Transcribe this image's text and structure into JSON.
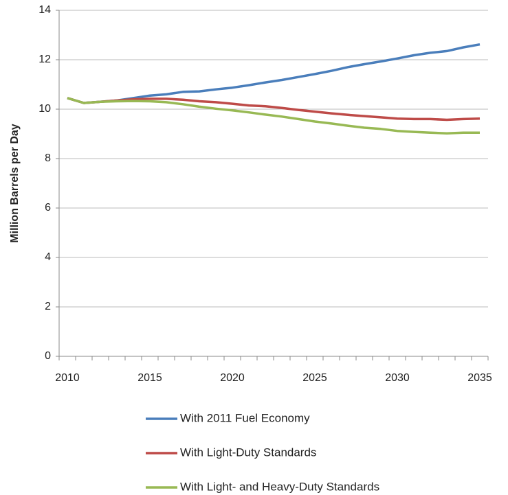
{
  "chart_data": {
    "type": "line",
    "y_label": "Million Barrels per Day",
    "x": [
      2010,
      2011,
      2012,
      2013,
      2014,
      2015,
      2016,
      2017,
      2018,
      2019,
      2020,
      2021,
      2022,
      2023,
      2024,
      2025,
      2026,
      2027,
      2028,
      2029,
      2030,
      2031,
      2032,
      2033,
      2034,
      2035
    ],
    "xlim": [
      2009.5,
      2035.5
    ],
    "xticks": [
      2010,
      2015,
      2020,
      2025,
      2030,
      2035
    ],
    "ylim": [
      0,
      14
    ],
    "yticks": [
      0,
      2,
      4,
      6,
      8,
      10,
      12,
      14
    ],
    "grid": true,
    "legend": "bottom",
    "series": [
      {
        "name": "With 2011 Fuel Economy",
        "color": "#4a7ebb",
        "values": [
          10.45,
          10.25,
          10.3,
          10.35,
          10.45,
          10.55,
          10.6,
          10.7,
          10.72,
          10.8,
          10.87,
          10.97,
          11.08,
          11.18,
          11.3,
          11.42,
          11.55,
          11.7,
          11.82,
          11.93,
          12.05,
          12.18,
          12.28,
          12.35,
          12.5,
          12.62
        ]
      },
      {
        "name": "With Light-Duty Standards",
        "color": "#be4b48",
        "values": [
          10.45,
          10.25,
          10.3,
          10.35,
          10.4,
          10.42,
          10.42,
          10.38,
          10.32,
          10.28,
          10.22,
          10.15,
          10.12,
          10.05,
          9.97,
          9.9,
          9.83,
          9.77,
          9.72,
          9.67,
          9.62,
          9.6,
          9.6,
          9.57,
          9.6,
          9.62
        ]
      },
      {
        "name": "With Light- and Heavy-Duty Standards",
        "color": "#98b954",
        "values": [
          10.45,
          10.25,
          10.3,
          10.32,
          10.33,
          10.32,
          10.28,
          10.2,
          10.1,
          10.02,
          9.95,
          9.87,
          9.78,
          9.7,
          9.6,
          9.5,
          9.42,
          9.33,
          9.25,
          9.2,
          9.12,
          9.08,
          9.05,
          9.02,
          9.05,
          9.05
        ]
      }
    ]
  }
}
